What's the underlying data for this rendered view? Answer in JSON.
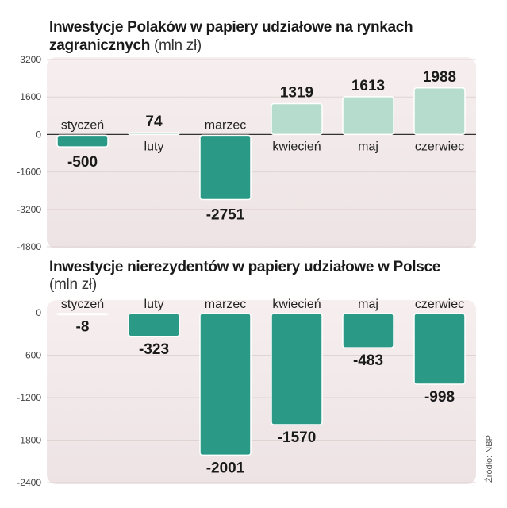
{
  "chart_data": [
    {
      "type": "bar",
      "title": "Inwestycje Polaków w papiery udziałowe na rynkach zagranicznych",
      "unit": "(mln zł)",
      "categories": [
        "styczeń",
        "luty",
        "marzec",
        "kwiecień",
        "maj",
        "czerwiec"
      ],
      "values": [
        -500,
        74,
        -2751,
        1319,
        1613,
        1988
      ],
      "value_labels": [
        "-500",
        "74",
        "-2751",
        "1319",
        "1613",
        "1988"
      ],
      "ylim": [
        -4800,
        3200
      ],
      "yticks": [
        3200,
        1600,
        0,
        -1600,
        -3200,
        -4800
      ],
      "colors": {
        "positive": "#b6dccd",
        "negative": "#2a9a86"
      }
    },
    {
      "type": "bar",
      "title": "Inwestycje nierezydentów w papiery udziałowe w Polsce",
      "unit": "(mln zł)",
      "categories": [
        "styczeń",
        "luty",
        "marzec",
        "kwiecień",
        "maj",
        "czerwiec"
      ],
      "values": [
        -8,
        -323,
        -2001,
        -1570,
        -483,
        -998
      ],
      "value_labels": [
        "-8",
        "-323",
        "-2001",
        "-1570",
        "-483",
        "-998"
      ],
      "ylim": [
        -2400,
        0
      ],
      "yticks": [
        0,
        -600,
        -1200,
        -1800,
        -2400
      ],
      "colors": {
        "positive": "#b6dccd",
        "negative": "#2a9a86"
      }
    }
  ],
  "source": "Źródło: NBP"
}
